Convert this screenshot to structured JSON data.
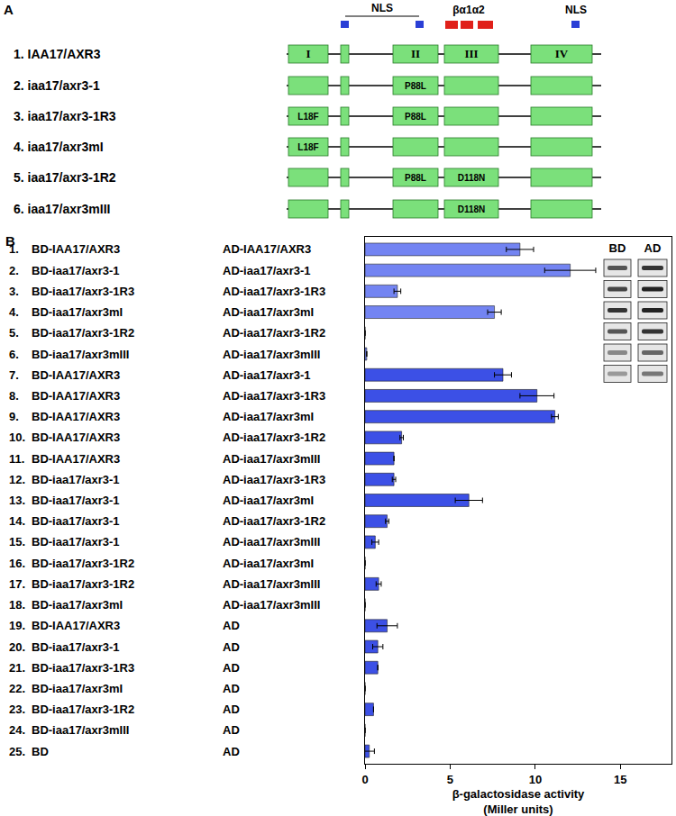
{
  "panel_a": {
    "label": "A",
    "markers": {
      "nls_left": "NLS",
      "secondary": "βα1α2",
      "nls_right": "NLS"
    },
    "rows": [
      {
        "label": "1. IAA17/AXR3",
        "box_texts": [
          "I",
          null,
          "II",
          "III",
          "IV"
        ]
      },
      {
        "label": "2. iaa17/axr3-1",
        "box_texts": [
          null,
          null,
          "P88L",
          null,
          null
        ]
      },
      {
        "label": "3. iaa17/axr3-1R3",
        "box_texts": [
          "L18F",
          null,
          "P88L",
          null,
          null
        ]
      },
      {
        "label": "4. iaa17/axr3mI",
        "box_texts": [
          "L18F",
          null,
          null,
          null,
          null
        ]
      },
      {
        "label": "5. iaa17/axr3-1R2",
        "box_texts": [
          null,
          null,
          "P88L",
          "D118N",
          null
        ]
      },
      {
        "label": "6. iaa17/axr3mIII",
        "box_texts": [
          null,
          null,
          null,
          "D118N",
          null
        ]
      }
    ]
  },
  "blot": {
    "headers": [
      "BD",
      "AD"
    ]
  },
  "chart_data": {
    "type": "bar",
    "panel_label": "B",
    "orientation": "horizontal",
    "numbers": [
      "1.",
      "2.",
      "3.",
      "4.",
      "5.",
      "6.",
      "7.",
      "8.",
      "9.",
      "10.",
      "11.",
      "12.",
      "13.",
      "14.",
      "15.",
      "16.",
      "17.",
      "18.",
      "19.",
      "20.",
      "21.",
      "22.",
      "23.",
      "24.",
      "25."
    ],
    "categories": [
      "BD-IAA17/AXR3",
      "BD-iaa17/axr3-1",
      "BD-iaa17/axr3-1R3",
      "BD-iaa17/axr3mI",
      "BD-iaa17/axr3-1R2",
      "BD-iaa17/axr3mIII",
      "BD-IAA17/AXR3",
      "BD-IAA17/AXR3",
      "BD-IAA17/AXR3",
      "BD-IAA17/AXR3",
      "BD-IAA17/AXR3",
      "BD-iaa17/axr3-1",
      "BD-iaa17/axr3-1",
      "BD-iaa17/axr3-1",
      "BD-iaa17/axr3-1",
      "BD-iaa17/axr3-1R2",
      "BD-iaa17/axr3-1R2",
      "BD-iaa17/axr3mI",
      "BD-IAA17/AXR3",
      "BD-iaa17/axr3-1",
      "BD-iaa17/axr3-1R3",
      "BD-iaa17/axr3mI",
      "BD-iaa17/axr3-1R2",
      "BD-iaa17/axr3mIII",
      "BD"
    ],
    "ad_labels": [
      "AD-IAA17/AXR3",
      "AD-iaa17/axr3-1",
      "AD-iaa17/axr3-1R3",
      "AD-iaa17/axr3mI",
      "AD-iaa17/axr3-1R2",
      "AD-iaa17/axr3mIII",
      "AD-iaa17/axr3-1",
      "AD-iaa17/axr3-1R3",
      "AD-iaa17/axr3mI",
      "AD-iaa17/axr3-1R2",
      "AD-iaa17/axr3mIII",
      "AD-iaa17/axr3-1R3",
      "AD-iaa17/axr3mI",
      "AD-iaa17/axr3-1R2",
      "AD-iaa17/axr3mIII",
      "AD-iaa17/axr3mI",
      "AD-iaa17/axr3mIII",
      "AD-iaa17/axr3mIII",
      "AD",
      "AD",
      "AD",
      "AD",
      "AD",
      "AD",
      "AD"
    ],
    "values": [
      9.1,
      12.05,
      1.9,
      7.6,
      0,
      0.1,
      8.1,
      10.1,
      11.15,
      2.15,
      1.7,
      1.7,
      6.1,
      1.3,
      0.6,
      0,
      0.8,
      0,
      1.3,
      0.75,
      0.75,
      0,
      0.5,
      0,
      0.25
    ],
    "errors": [
      0.8,
      1.5,
      0.2,
      0.4,
      null,
      null,
      0.5,
      1.0,
      0.2,
      0.1,
      null,
      0.1,
      0.8,
      0.1,
      0.2,
      null,
      0.15,
      null,
      0.6,
      0.3,
      null,
      null,
      null,
      null,
      0.3
    ],
    "colors": [
      "#7384f2",
      "#7384f2",
      "#7384f2",
      "#7384f2",
      "#7384f2",
      "#7384f2",
      "#3c50e6",
      "#3c50e6",
      "#3c50e6",
      "#3c50e6",
      "#3c50e6",
      "#3c50e6",
      "#3c50e6",
      "#3c50e6",
      "#3c50e6",
      "#3c50e6",
      "#3c50e6",
      "#3c50e6",
      "#3c50e6",
      "#3c50e6",
      "#3c50e6",
      "#3c50e6",
      "#3c50e6",
      "#3c50e6",
      "#3c50e6"
    ],
    "xlim": [
      0,
      18
    ],
    "xticks": [
      0,
      5,
      10,
      15
    ],
    "xlabel": [
      "β-galactosidase activity",
      "(Miller units)"
    ],
    "tick_labels": "x",
    "grid": false
  }
}
